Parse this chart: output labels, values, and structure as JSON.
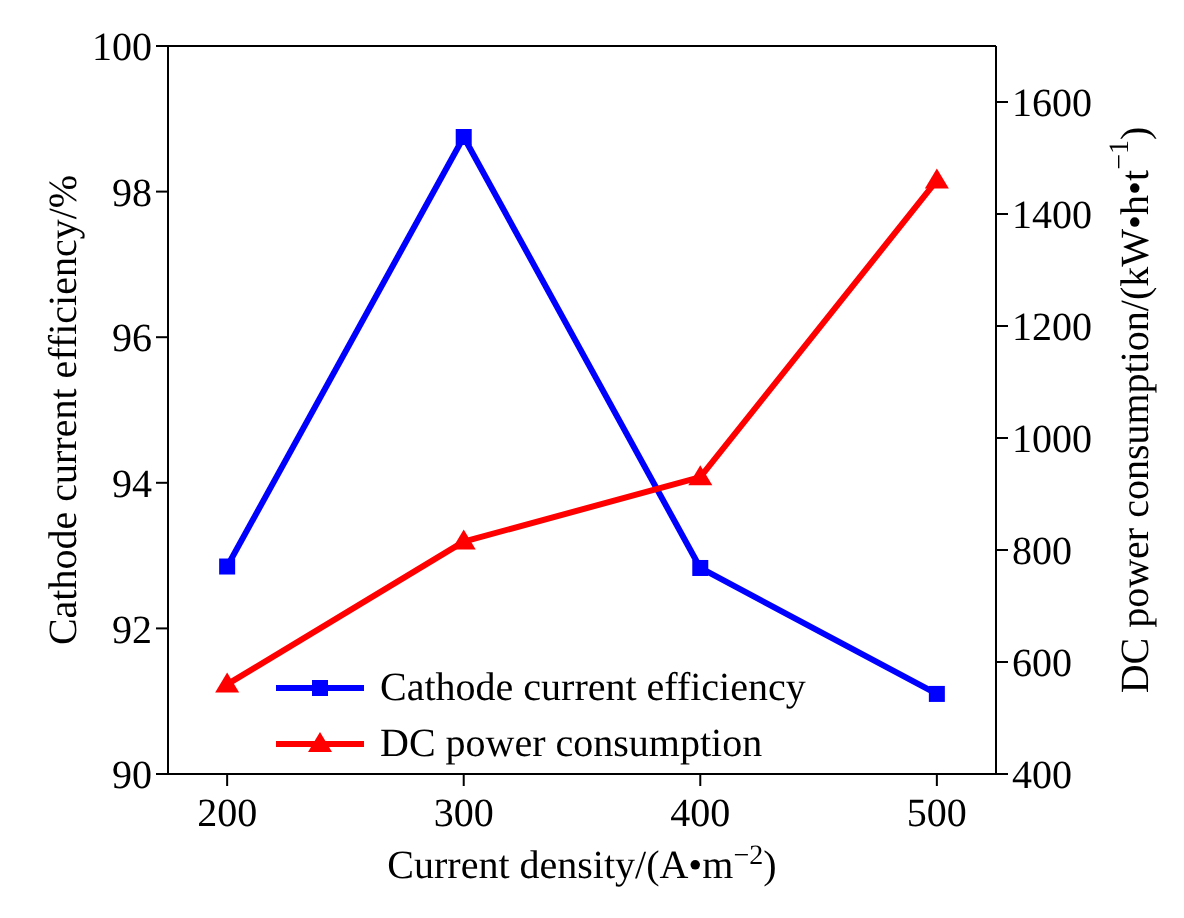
{
  "chart_data": {
    "type": "line",
    "xlabel": "Current density/(A•m$^{−2}$)",
    "ylabel": "Cathode current efficiency/%",
    "y2label": "DC power consumption/(kW•h•t$^{−1}$)",
    "x": [
      200,
      300,
      400,
      500
    ],
    "xlim": [
      175,
      525
    ],
    "xticks": [
      200,
      300,
      400,
      500
    ],
    "ylim": [
      90,
      100
    ],
    "yticks": [
      90,
      92,
      94,
      96,
      98,
      100
    ],
    "y2lim": [
      400,
      1700
    ],
    "y2ticks": [
      400,
      600,
      800,
      1000,
      1200,
      1400,
      1600
    ],
    "series": [
      {
        "name": "Cathode current efficiency",
        "color": "#0000ff",
        "marker": "square",
        "values": [
          92.85,
          98.75,
          92.83,
          91.1
        ]
      },
      {
        "name": "DC power consumption",
        "color": "#ff0000",
        "marker": "triangle",
        "axis": "y2",
        "values": [
          560,
          815,
          930,
          1460
        ]
      }
    ],
    "legend": "bottom left",
    "grid": false
  }
}
